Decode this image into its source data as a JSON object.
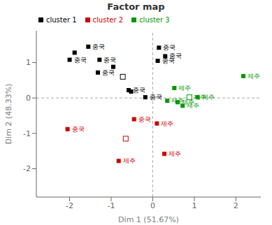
{
  "chart_data": {
    "type": "scatter",
    "title": "Factor map",
    "x_label": "Dim 1 (51.67%)",
    "y_label": "Dim 2 (48.33%)",
    "xlim": [
      -2.8,
      2.6
    ],
    "ylim": [
      -2.8,
      1.9
    ],
    "xticks": [
      -2,
      -1,
      0,
      1,
      2
    ],
    "yticks": [
      -2,
      -1,
      0,
      1
    ],
    "legend": "upper left",
    "reference_lines": [
      {
        "axis": "y",
        "value": 0
      },
      {
        "axis": "x",
        "value": 0
      }
    ],
    "series": [
      {
        "name": "cluster 1",
        "color": "#000000",
        "x": [
          -1.55,
          -1.88,
          -2.0,
          -1.28,
          -0.95,
          -1.32,
          -0.72,
          -0.58,
          -0.52,
          -0.18,
          0.15,
          0.3,
          0.12
        ],
        "y": [
          1.45,
          1.28,
          1.08,
          1.08,
          0.88,
          0.72,
          0.6,
          0.22,
          0.18,
          0.02,
          1.42,
          1.18,
          1.05
        ],
        "labels": [
          "중국",
          null,
          "중국",
          "중국",
          null,
          "중국",
          null,
          "중국",
          null,
          "중국",
          "중국",
          "중국",
          "중국"
        ],
        "markers": [
          "square",
          "square",
          "square",
          "square",
          "square",
          "square",
          "open_square",
          "square",
          "square",
          "square",
          "square",
          "square",
          "square"
        ]
      },
      {
        "name": "cluster 2",
        "color": "#cc0000",
        "x": [
          -2.05,
          -0.45,
          -0.65,
          -0.82,
          0.1,
          0.28
        ],
        "y": [
          -0.88,
          -0.6,
          -1.15,
          -1.78,
          -0.72,
          -1.58
        ],
        "labels": [
          "중국",
          "중국",
          null,
          "제주",
          "제주",
          "제주"
        ],
        "markers": [
          "square",
          "square",
          "open_square",
          "square",
          "square",
          "square"
        ]
      },
      {
        "name": "cluster 3",
        "color": "#009900",
        "x": [
          2.18,
          0.52,
          0.35,
          0.6,
          0.72,
          0.88,
          1.08
        ],
        "y": [
          0.62,
          0.28,
          -0.08,
          -0.12,
          -0.22,
          0.02,
          0.02
        ],
        "labels": [
          "제주",
          "제주",
          "제주",
          "제주",
          "제주",
          "제주",
          "제주"
        ],
        "markers": [
          "square",
          "square",
          "square",
          "square",
          "square",
          "open_square",
          "square"
        ]
      }
    ]
  }
}
